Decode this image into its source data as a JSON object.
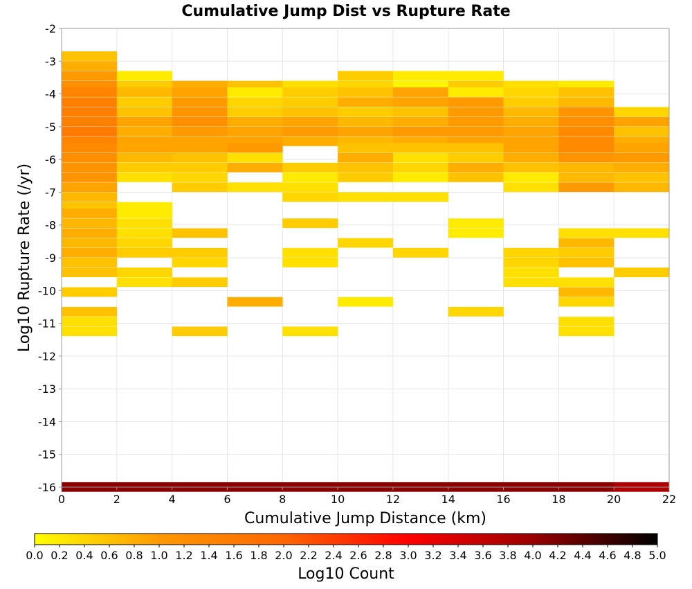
{
  "chart_data": {
    "type": "heatmap",
    "title": "Cumulative Jump Dist vs Rupture Rate",
    "xlabel": "Cumulative Jump Distance (km)",
    "ylabel": "Log10 Rupture Rate (/yr)",
    "xlim": [
      0,
      22
    ],
    "ylim": [
      -16,
      -2
    ],
    "x_ticks": [
      0,
      2,
      4,
      6,
      8,
      10,
      12,
      14,
      16,
      18,
      20,
      22
    ],
    "y_ticks": [
      -2,
      -3,
      -4,
      -5,
      -6,
      -7,
      -8,
      -9,
      -10,
      -11,
      -12,
      -13,
      -14,
      -15,
      -16
    ],
    "x_bin_width": 2,
    "y_bin_height": 0.285,
    "grid": true,
    "colorbar": {
      "label": "Log10 Count",
      "min": 0.0,
      "max": 5.0,
      "ticks": [
        "0.0",
        "0.2",
        "0.4",
        "0.6",
        "0.8",
        "1.0",
        "1.2",
        "1.4",
        "1.6",
        "1.8",
        "2.0",
        "2.2",
        "2.4",
        "2.6",
        "2.8",
        "3.0",
        "3.2",
        "3.4",
        "3.6",
        "3.8",
        "4.0",
        "4.2",
        "4.4",
        "4.6",
        "4.8",
        "5.0"
      ],
      "palette": [
        "#ffff00",
        "#ff9900",
        "#ff6600",
        "#ff0000",
        "#990000",
        "#000000"
      ]
    },
    "columns": [
      {
        "x": 0,
        "cells": [
          {
            "y": -2.7,
            "v": 0.6
          },
          {
            "y": -3.0,
            "v": 0.8
          },
          {
            "y": -3.3,
            "v": 1.0
          },
          {
            "y": -3.6,
            "v": 1.2
          },
          {
            "y": -3.8,
            "v": 1.4
          },
          {
            "y": -4.1,
            "v": 1.5
          },
          {
            "y": -4.4,
            "v": 1.5
          },
          {
            "y": -4.7,
            "v": 1.5
          },
          {
            "y": -5.0,
            "v": 1.6
          },
          {
            "y": -5.3,
            "v": 1.4
          },
          {
            "y": -5.5,
            "v": 1.3
          },
          {
            "y": -5.8,
            "v": 1.2
          },
          {
            "y": -6.1,
            "v": 1.1
          },
          {
            "y": -6.4,
            "v": 1.1
          },
          {
            "y": -6.7,
            "v": 0.9
          },
          {
            "y": -7.0,
            "v": 0.7
          },
          {
            "y": -7.3,
            "v": 0.6
          },
          {
            "y": -7.5,
            "v": 0.8
          },
          {
            "y": -7.8,
            "v": 0.7
          },
          {
            "y": -8.1,
            "v": 0.8
          },
          {
            "y": -8.4,
            "v": 0.7
          },
          {
            "y": -8.7,
            "v": 0.8
          },
          {
            "y": -9.0,
            "v": 0.6
          },
          {
            "y": -9.3,
            "v": 0.6
          },
          {
            "y": -9.9,
            "v": 0.5
          },
          {
            "y": -10.5,
            "v": 0.6
          },
          {
            "y": -10.8,
            "v": 0.3
          },
          {
            "y": -11.1,
            "v": 0.3
          },
          {
            "y": -15.85,
            "v": 4.1
          }
        ]
      },
      {
        "x": 2,
        "cells": [
          {
            "y": -3.3,
            "v": 0.2
          },
          {
            "y": -3.6,
            "v": 0.5
          },
          {
            "y": -3.8,
            "v": 0.7
          },
          {
            "y": -4.1,
            "v": 0.5
          },
          {
            "y": -4.4,
            "v": 0.6
          },
          {
            "y": -4.7,
            "v": 0.9
          },
          {
            "y": -5.0,
            "v": 0.8
          },
          {
            "y": -5.3,
            "v": 0.9
          },
          {
            "y": -5.5,
            "v": 0.9
          },
          {
            "y": -5.8,
            "v": 0.7
          },
          {
            "y": -6.1,
            "v": 0.5
          },
          {
            "y": -6.4,
            "v": 0.3
          },
          {
            "y": -7.3,
            "v": 0.2
          },
          {
            "y": -7.5,
            "v": 0.2
          },
          {
            "y": -7.8,
            "v": 0.3
          },
          {
            "y": -8.1,
            "v": 0.3
          },
          {
            "y": -8.4,
            "v": 0.4
          },
          {
            "y": -8.7,
            "v": 0.5
          },
          {
            "y": -9.3,
            "v": 0.4
          },
          {
            "y": -9.6,
            "v": 0.3
          },
          {
            "y": -15.85,
            "v": 4.1
          }
        ]
      },
      {
        "x": 4,
        "cells": [
          {
            "y": -3.6,
            "v": 0.8
          },
          {
            "y": -3.8,
            "v": 0.9
          },
          {
            "y": -4.1,
            "v": 1.0
          },
          {
            "y": -4.4,
            "v": 1.1
          },
          {
            "y": -4.7,
            "v": 1.2
          },
          {
            "y": -5.0,
            "v": 1.0
          },
          {
            "y": -5.3,
            "v": 0.9
          },
          {
            "y": -5.5,
            "v": 0.9
          },
          {
            "y": -5.8,
            "v": 0.6
          },
          {
            "y": -6.1,
            "v": 0.5
          },
          {
            "y": -6.4,
            "v": 0.4
          },
          {
            "y": -6.7,
            "v": 0.5
          },
          {
            "y": -8.1,
            "v": 0.6
          },
          {
            "y": -8.7,
            "v": 0.5
          },
          {
            "y": -9.0,
            "v": 0.4
          },
          {
            "y": -9.6,
            "v": 0.5
          },
          {
            "y": -11.1,
            "v": 0.5
          },
          {
            "y": -15.85,
            "v": 4.1
          }
        ]
      },
      {
        "x": 6,
        "cells": [
          {
            "y": -3.6,
            "v": 0.6
          },
          {
            "y": -3.8,
            "v": 0.2
          },
          {
            "y": -4.1,
            "v": 0.4
          },
          {
            "y": -4.4,
            "v": 0.5
          },
          {
            "y": -4.7,
            "v": 0.8
          },
          {
            "y": -5.0,
            "v": 0.9
          },
          {
            "y": -5.3,
            "v": 0.9
          },
          {
            "y": -5.5,
            "v": 1.0
          },
          {
            "y": -5.8,
            "v": 0.3
          },
          {
            "y": -6.1,
            "v": 0.8
          },
          {
            "y": -6.7,
            "v": 0.3
          },
          {
            "y": -10.2,
            "v": 0.8
          },
          {
            "y": -15.85,
            "v": 4.1
          }
        ]
      },
      {
        "x": 8,
        "cells": [
          {
            "y": -3.6,
            "v": 0.3
          },
          {
            "y": -3.8,
            "v": 0.5
          },
          {
            "y": -4.1,
            "v": 0.5
          },
          {
            "y": -4.4,
            "v": 0.6
          },
          {
            "y": -4.7,
            "v": 0.9
          },
          {
            "y": -5.0,
            "v": 1.0
          },
          {
            "y": -5.3,
            "v": 0.8
          },
          {
            "y": -6.1,
            "v": 0.5
          },
          {
            "y": -6.4,
            "v": 0.2
          },
          {
            "y": -6.7,
            "v": 0.3
          },
          {
            "y": -7.0,
            "v": 0.4
          },
          {
            "y": -7.8,
            "v": 0.5
          },
          {
            "y": -8.7,
            "v": 0.3
          },
          {
            "y": -9.0,
            "v": 0.3
          },
          {
            "y": -11.1,
            "v": 0.3
          },
          {
            "y": -15.85,
            "v": 4.1
          }
        ]
      },
      {
        "x": 10,
        "cells": [
          {
            "y": -3.3,
            "v": 0.5
          },
          {
            "y": -3.6,
            "v": 0.4
          },
          {
            "y": -3.8,
            "v": 0.6
          },
          {
            "y": -4.1,
            "v": 0.8
          },
          {
            "y": -4.4,
            "v": 0.5
          },
          {
            "y": -4.7,
            "v": 0.7
          },
          {
            "y": -5.0,
            "v": 0.9
          },
          {
            "y": -5.3,
            "v": 0.7
          },
          {
            "y": -5.5,
            "v": 0.6
          },
          {
            "y": -5.8,
            "v": 0.8
          },
          {
            "y": -6.1,
            "v": 0.6
          },
          {
            "y": -6.4,
            "v": 0.5
          },
          {
            "y": -7.0,
            "v": 0.3
          },
          {
            "y": -8.4,
            "v": 0.4
          },
          {
            "y": -10.2,
            "v": 0.2
          },
          {
            "y": -15.85,
            "v": 4.1
          }
        ]
      },
      {
        "x": 12,
        "cells": [
          {
            "y": -3.3,
            "v": 0.2
          },
          {
            "y": -3.6,
            "v": 0.1
          },
          {
            "y": -3.8,
            "v": 0.9
          },
          {
            "y": -4.1,
            "v": 0.9
          },
          {
            "y": -4.4,
            "v": 0.6
          },
          {
            "y": -4.7,
            "v": 0.8
          },
          {
            "y": -5.0,
            "v": 1.0
          },
          {
            "y": -5.3,
            "v": 0.8
          },
          {
            "y": -5.5,
            "v": 0.6
          },
          {
            "y": -5.8,
            "v": 0.3
          },
          {
            "y": -6.1,
            "v": 0.4
          },
          {
            "y": -6.4,
            "v": 0.2
          },
          {
            "y": -7.0,
            "v": 0.3
          },
          {
            "y": -8.7,
            "v": 0.4
          },
          {
            "y": -15.85,
            "v": 4.1
          }
        ]
      },
      {
        "x": 14,
        "cells": [
          {
            "y": -3.3,
            "v": 0.2
          },
          {
            "y": -3.6,
            "v": 0.5
          },
          {
            "y": -3.8,
            "v": 0.2
          },
          {
            "y": -4.1,
            "v": 1.0
          },
          {
            "y": -4.4,
            "v": 1.0
          },
          {
            "y": -4.7,
            "v": 1.0
          },
          {
            "y": -5.0,
            "v": 1.0
          },
          {
            "y": -5.3,
            "v": 0.9
          },
          {
            "y": -5.5,
            "v": 0.6
          },
          {
            "y": -5.8,
            "v": 0.5
          },
          {
            "y": -6.1,
            "v": 0.8
          },
          {
            "y": -6.4,
            "v": 0.6
          },
          {
            "y": -7.8,
            "v": 0.2
          },
          {
            "y": -8.1,
            "v": 0.2
          },
          {
            "y": -10.5,
            "v": 0.4
          },
          {
            "y": -15.85,
            "v": 4.1
          }
        ]
      },
      {
        "x": 16,
        "cells": [
          {
            "y": -3.6,
            "v": 0.3
          },
          {
            "y": -3.8,
            "v": 0.4
          },
          {
            "y": -4.1,
            "v": 0.5
          },
          {
            "y": -4.4,
            "v": 0.7
          },
          {
            "y": -4.7,
            "v": 0.8
          },
          {
            "y": -5.0,
            "v": 0.9
          },
          {
            "y": -5.3,
            "v": 0.9
          },
          {
            "y": -5.5,
            "v": 0.9
          },
          {
            "y": -5.8,
            "v": 0.8
          },
          {
            "y": -6.1,
            "v": 0.6
          },
          {
            "y": -6.4,
            "v": 0.2
          },
          {
            "y": -6.7,
            "v": 0.3
          },
          {
            "y": -8.7,
            "v": 0.4
          },
          {
            "y": -9.0,
            "v": 0.4
          },
          {
            "y": -9.3,
            "v": 0.3
          },
          {
            "y": -9.6,
            "v": 0.3
          },
          {
            "y": -15.85,
            "v": 4.1
          }
        ]
      },
      {
        "x": 18,
        "cells": [
          {
            "y": -3.6,
            "v": 0.2
          },
          {
            "y": -3.8,
            "v": 0.6
          },
          {
            "y": -4.1,
            "v": 0.7
          },
          {
            "y": -4.4,
            "v": 1.1
          },
          {
            "y": -4.7,
            "v": 1.2
          },
          {
            "y": -5.0,
            "v": 1.3
          },
          {
            "y": -5.3,
            "v": 1.3
          },
          {
            "y": -5.5,
            "v": 1.3
          },
          {
            "y": -5.8,
            "v": 1.1
          },
          {
            "y": -6.1,
            "v": 0.7
          },
          {
            "y": -6.4,
            "v": 0.7
          },
          {
            "y": -6.7,
            "v": 1.0
          },
          {
            "y": -8.1,
            "v": 0.3
          },
          {
            "y": -8.4,
            "v": 0.7
          },
          {
            "y": -8.7,
            "v": 0.5
          },
          {
            "y": -9.0,
            "v": 0.6
          },
          {
            "y": -9.6,
            "v": 0.3
          },
          {
            "y": -9.9,
            "v": 0.7
          },
          {
            "y": -10.2,
            "v": 0.4
          },
          {
            "y": -10.8,
            "v": 0.3
          },
          {
            "y": -11.1,
            "v": 0.3
          },
          {
            "y": -15.85,
            "v": 4.1
          }
        ]
      },
      {
        "x": 20,
        "cells": [
          {
            "y": -4.4,
            "v": 0.4
          },
          {
            "y": -4.7,
            "v": 0.9
          },
          {
            "y": -5.0,
            "v": 0.6
          },
          {
            "y": -5.3,
            "v": 0.8
          },
          {
            "y": -5.5,
            "v": 0.9
          },
          {
            "y": -5.8,
            "v": 1.0
          },
          {
            "y": -6.1,
            "v": 0.8
          },
          {
            "y": -6.4,
            "v": 0.6
          },
          {
            "y": -6.7,
            "v": 0.7
          },
          {
            "y": -8.1,
            "v": 0.3
          },
          {
            "y": -9.3,
            "v": 0.5
          },
          {
            "y": -15.85,
            "v": 3.8
          }
        ]
      }
    ]
  }
}
